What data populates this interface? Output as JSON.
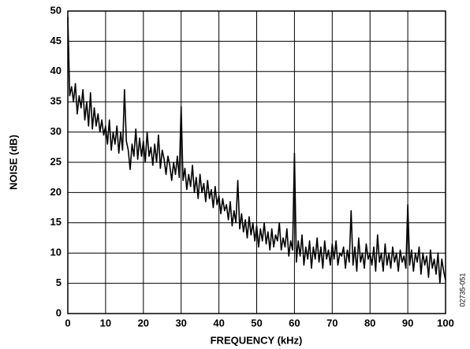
{
  "chart_data": {
    "type": "line",
    "x_label": "FREQUENCY (kHz)",
    "y_label": "NOISE (dB)",
    "note": "02735-051",
    "xlim": [
      0,
      100
    ],
    "xticks": [
      0,
      10,
      20,
      30,
      40,
      50,
      60,
      70,
      80,
      90,
      100
    ],
    "ylim": [
      0,
      50
    ],
    "yticks": [
      0,
      5,
      10,
      15,
      20,
      25,
      30,
      35,
      40,
      45,
      50
    ],
    "grid": true,
    "color": "#000000",
    "x": [
      0,
      0.5,
      1,
      1.5,
      2,
      2.5,
      3,
      3.5,
      4,
      4.5,
      5,
      5.5,
      6,
      6.5,
      7,
      7.5,
      8,
      8.5,
      9,
      9.5,
      10,
      10.5,
      11,
      11.5,
      12,
      12.5,
      13,
      13.5,
      14,
      14.5,
      15,
      15.5,
      16,
      16.5,
      17,
      17.5,
      18,
      18.5,
      19,
      19.5,
      20,
      20.5,
      21,
      21.5,
      22,
      22.5,
      23,
      23.5,
      24,
      24.5,
      25,
      25.5,
      26,
      26.5,
      27,
      27.5,
      28,
      28.5,
      29,
      29.5,
      30,
      30.5,
      31,
      31.5,
      32,
      32.5,
      33,
      33.5,
      34,
      34.5,
      35,
      35.5,
      36,
      36.5,
      37,
      37.5,
      38,
      38.5,
      39,
      39.5,
      40,
      40.5,
      41,
      41.5,
      42,
      42.5,
      43,
      43.5,
      44,
      44.5,
      45,
      45.5,
      46,
      46.5,
      47,
      47.5,
      48,
      48.5,
      49,
      49.5,
      50,
      50.5,
      51,
      51.5,
      52,
      52.5,
      53,
      53.5,
      54,
      54.5,
      55,
      55.5,
      56,
      56.5,
      57,
      57.5,
      58,
      58.5,
      59,
      59.5,
      60,
      60.5,
      61,
      61.5,
      62,
      62.5,
      63,
      63.5,
      64,
      64.5,
      65,
      65.5,
      66,
      66.5,
      67,
      67.5,
      68,
      68.5,
      69,
      69.5,
      70,
      70.5,
      71,
      71.5,
      72,
      72.5,
      73,
      73.5,
      74,
      74.5,
      75,
      75.5,
      76,
      76.5,
      77,
      77.5,
      78,
      78.5,
      79,
      79.5,
      80,
      80.5,
      81,
      81.5,
      82,
      82.5,
      83,
      83.5,
      84,
      84.5,
      85,
      85.5,
      86,
      86.5,
      87,
      87.5,
      88,
      88.5,
      89,
      89.5,
      90,
      90.5,
      91,
      91.5,
      92,
      92.5,
      93,
      93.5,
      94,
      94.5,
      95,
      95.5,
      96,
      96.5,
      97,
      97.5,
      98,
      98.5,
      99,
      99.5,
      100
    ],
    "values": [
      49,
      36,
      37.5,
      35,
      38,
      33,
      36,
      34,
      37,
      32,
      35,
      31,
      36.5,
      30.5,
      34,
      31,
      33,
      30,
      32,
      29.5,
      31,
      28,
      32,
      27,
      30,
      28,
      31,
      26.5,
      30,
      27,
      37,
      28.5,
      27,
      23.8,
      28,
      26,
      30.5,
      25.5,
      29,
      26,
      28.5,
      25,
      30,
      26,
      27.5,
      24.5,
      28,
      25,
      29.5,
      24,
      27,
      25.5,
      23,
      26,
      24.5,
      22,
      25,
      23,
      26,
      22.5,
      34.2,
      22,
      24,
      20.5,
      23,
      21,
      24.5,
      20,
      22.5,
      19,
      23,
      20,
      21.5,
      18.5,
      22,
      19,
      20.5,
      17.5,
      21,
      18,
      19.5,
      16.5,
      19,
      17,
      18,
      15.5,
      18.5,
      14.5,
      17,
      15,
      22,
      14,
      16.5,
      13.5,
      15.5,
      12.5,
      16,
      13,
      15,
      12,
      14.5,
      11,
      14,
      12,
      15,
      11.5,
      13.5,
      10.5,
      14,
      11,
      13,
      12,
      15,
      10.5,
      12.5,
      11,
      14,
      9.5,
      12,
      10.5,
      26.5,
      8.5,
      12,
      9.5,
      13,
      8,
      11,
      9,
      12,
      7.5,
      11,
      9,
      12.5,
      8.5,
      11,
      7.5,
      12,
      9,
      10.5,
      8,
      11.5,
      9,
      12,
      8,
      10,
      9.5,
      11,
      7.5,
      10.5,
      8.5,
      17,
      8,
      11,
      7,
      12.5,
      8.5,
      10,
      7.5,
      11.5,
      9,
      10,
      8,
      11,
      7,
      13,
      8.5,
      10,
      7,
      11.5,
      8,
      10,
      7.5,
      11,
      8.5,
      10,
      7,
      10.5,
      8.5,
      9.5,
      7.5,
      18,
      8,
      10.5,
      7,
      10,
      8.5,
      11,
      6.5,
      10,
      8,
      9.5,
      6,
      10.5,
      7.5,
      9,
      6.5,
      10,
      5,
      9,
      7,
      5.5
    ]
  }
}
